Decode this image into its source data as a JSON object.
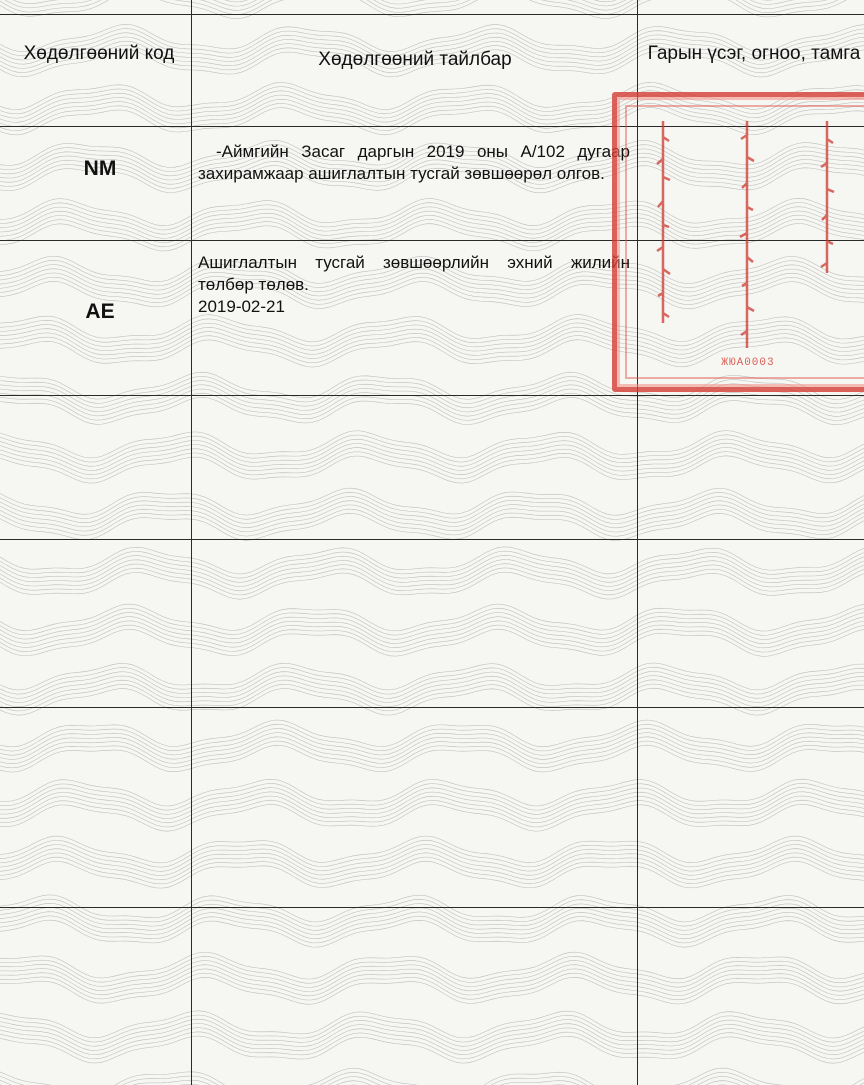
{
  "table": {
    "headers": {
      "code": "Хөдөлгөөний код",
      "description": "Хөдөлгөөний тайлбар",
      "signature": "Гарын үсэг, огноо, тамга"
    },
    "rows": [
      {
        "code": "NM",
        "description": "-Аймгийн Засаг даргын 2019 оны А/102 дугаар захирамжаар ашиглалтын тусгай зөвшөөрөл олгов."
      },
      {
        "code": "AE",
        "description": "Ашиглалтын тусгай зөвшөөрлийн эхний жилийн төлбөр төлөв.",
        "date": "2019-02-21"
      }
    ]
  },
  "stamp": {
    "id": "ЖЮА0003",
    "color": "#d63c34"
  },
  "colors": {
    "paper": "#f6f6f3",
    "guilloche": "#8a8a8a",
    "ink": "#111111"
  }
}
